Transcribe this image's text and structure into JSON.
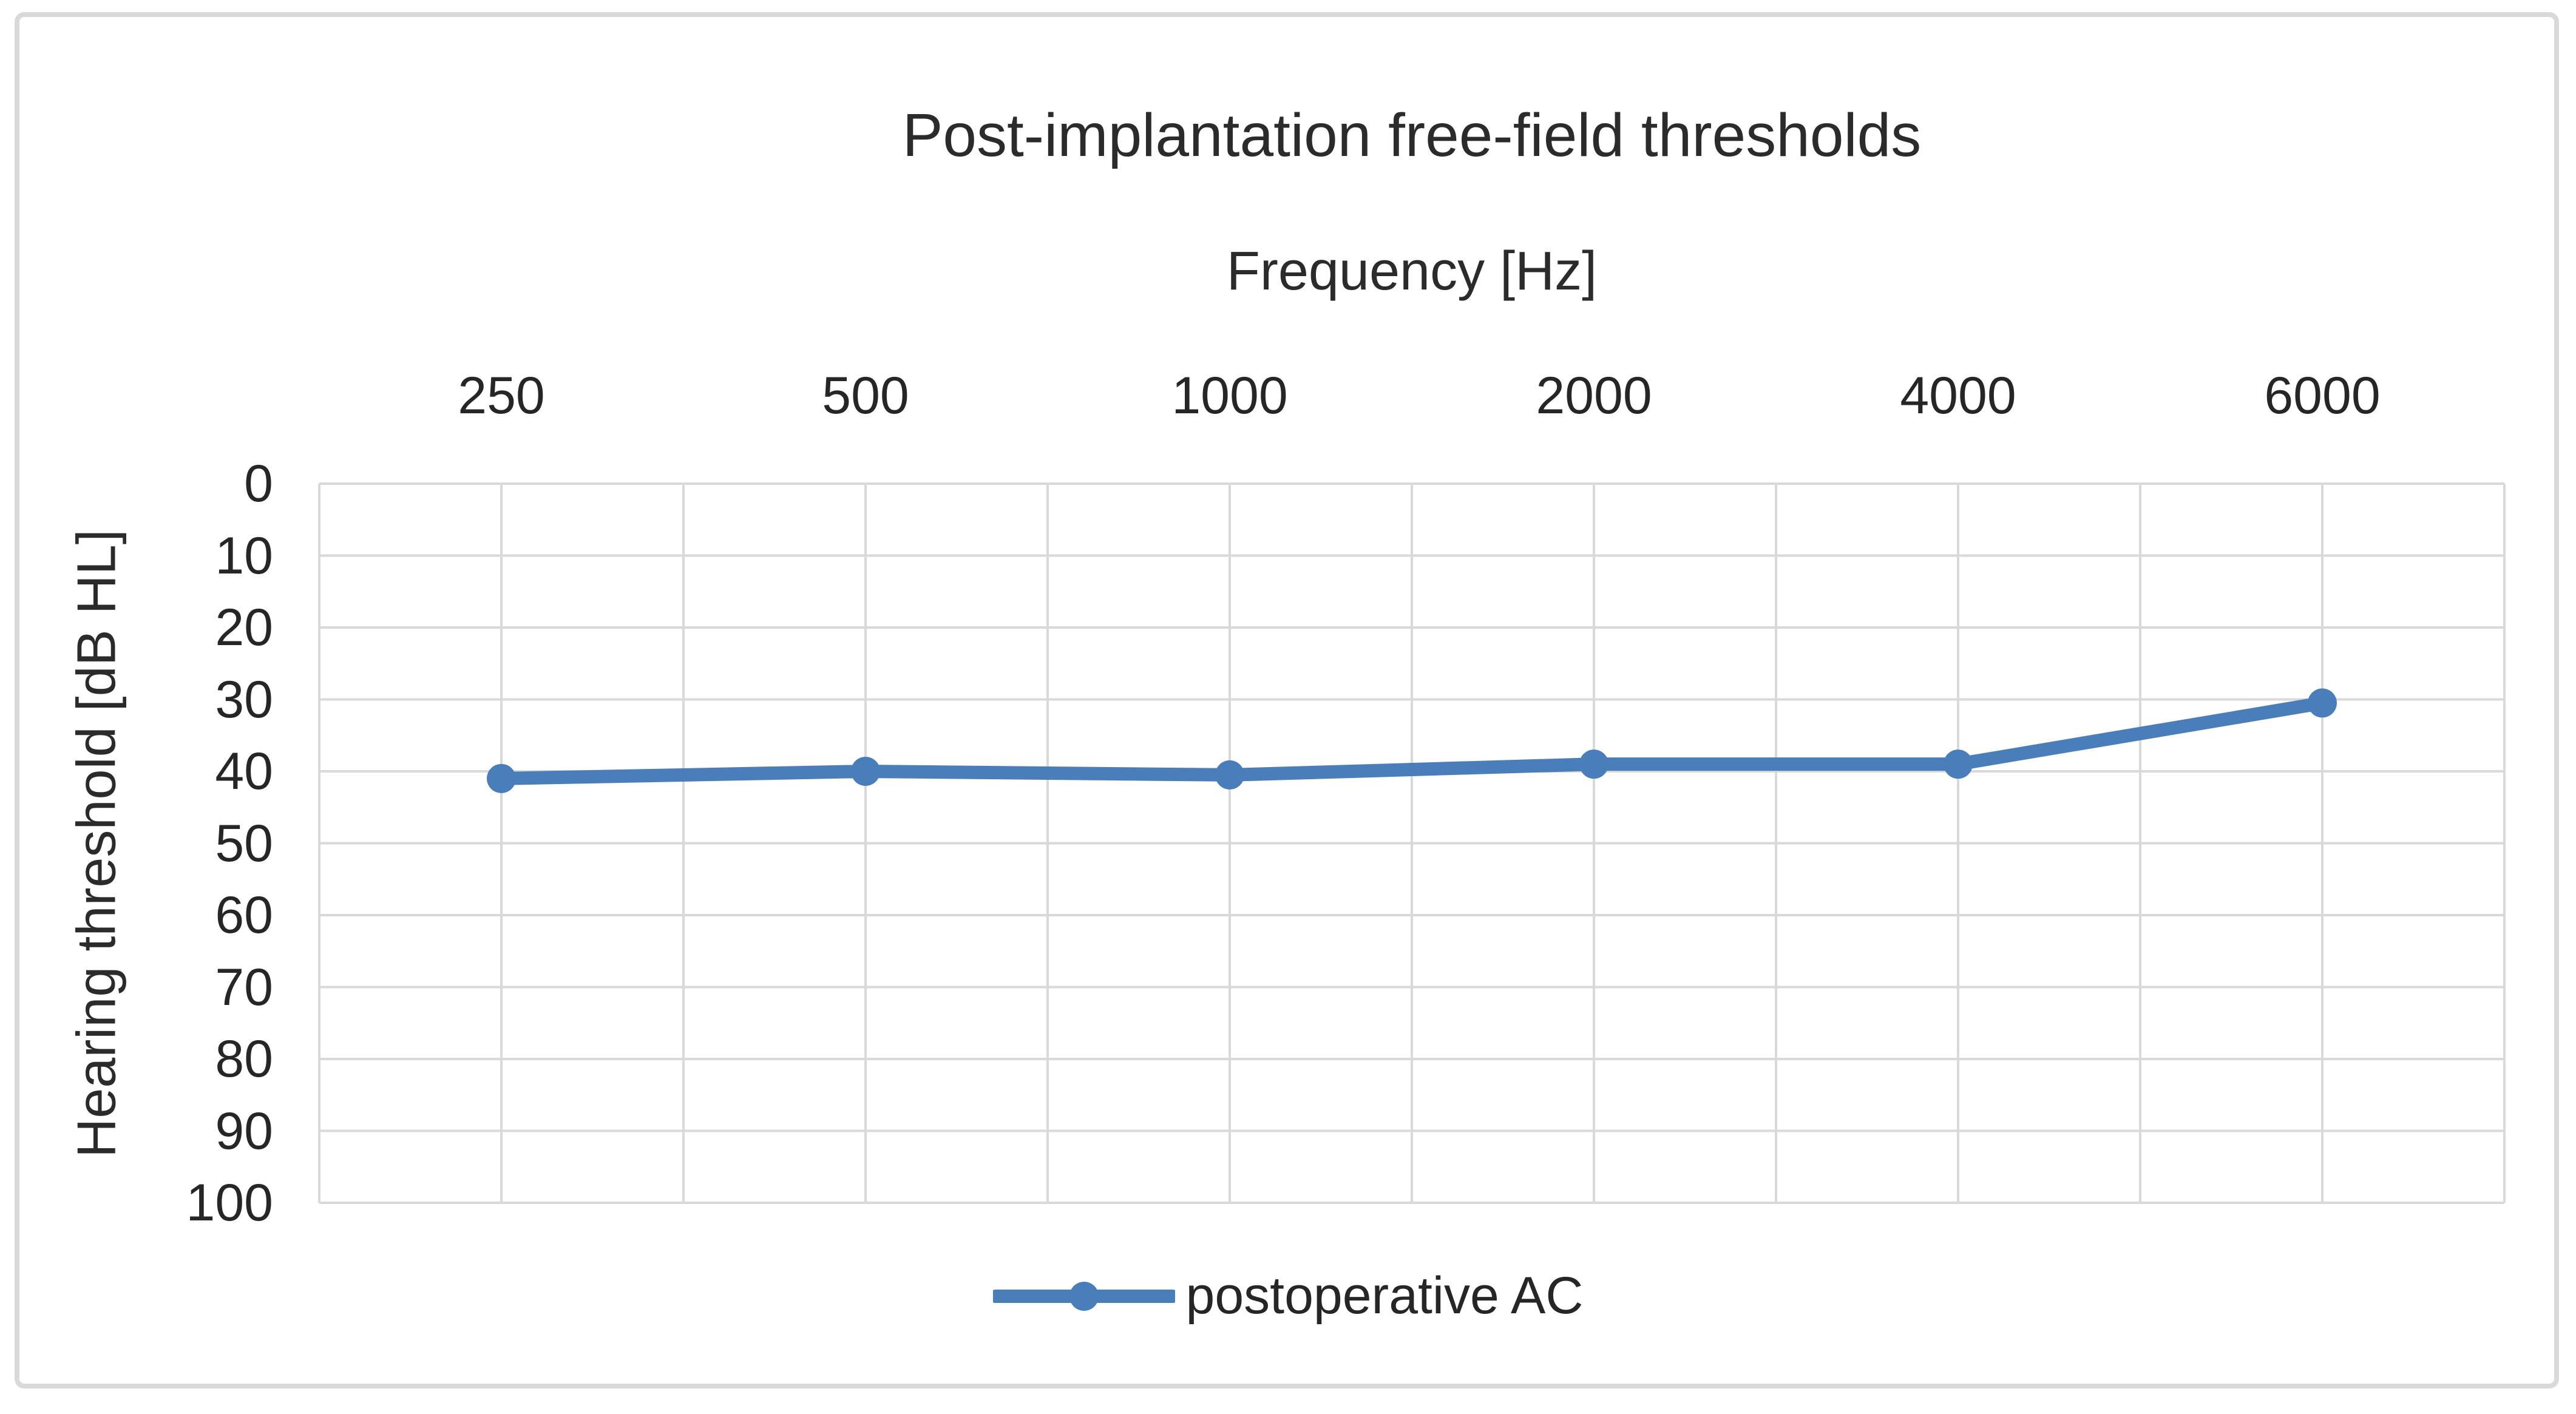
{
  "figure": {
    "background_color": "#ffffff",
    "border_color": "#d9d9d9"
  },
  "chart_data": {
    "type": "line",
    "title": "Post-implantation free-field thresholds",
    "x_axis_title": "Frequency [Hz]",
    "y_axis_title": "Hearing threshold [dB HL]",
    "categories": [
      "250",
      "500",
      "1000",
      "2000",
      "4000",
      "6000"
    ],
    "series": [
      {
        "name": "postoperative AC",
        "values": [
          41,
          40,
          40.5,
          39,
          39,
          30.5
        ],
        "color": "#4a7ebb",
        "marker": "circle",
        "line_width": 22,
        "marker_radius": 24
      }
    ],
    "y_ticks": [
      0,
      10,
      20,
      30,
      40,
      50,
      60,
      70,
      80,
      90,
      100
    ],
    "y_min": 0,
    "y_max": 100,
    "y_axis_direction": "inverted (0 dB at top, 100 dB at bottom)",
    "x_axis_position": "top",
    "grid": {
      "color": "#d9d9d9",
      "horizontal": "every 10 dB",
      "vertical": "every half category slot"
    },
    "legend_position": "bottom-center",
    "text_color": "#262626"
  }
}
